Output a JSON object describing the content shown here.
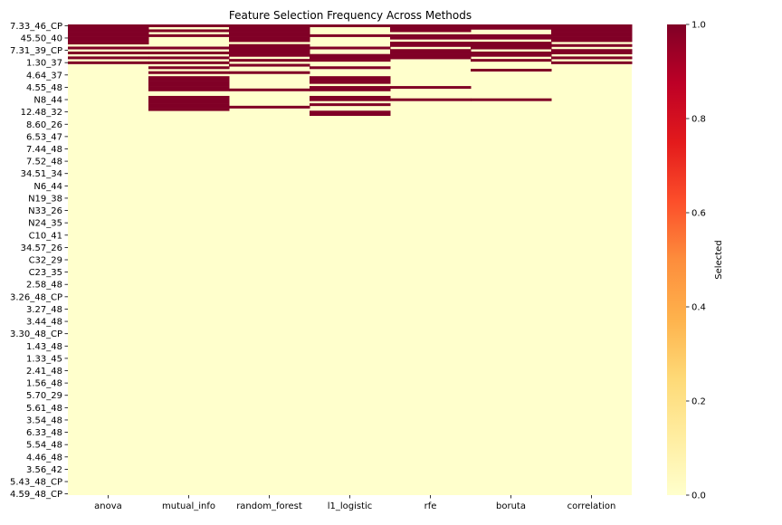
{
  "chart_data": {
    "type": "heatmap",
    "title": "Feature Selection Frequency Across Methods",
    "xlabel": "",
    "ylabel": "",
    "methods": [
      "anova",
      "mutual_info",
      "random_forest",
      "l1_logistic",
      "rfe",
      "boruta",
      "correlation"
    ],
    "n_features": 191,
    "y_tick_labels": [
      "7.33_46_CP",
      "45.50_40",
      "7.31_39_CP",
      "1.30_37",
      "4.64_37",
      "4.55_48",
      "N8_44",
      "12.48_32",
      "8.60_26",
      "6.53_47",
      "7.44_48",
      "7.52_48",
      "34.51_34",
      "N6_44",
      "N19_38",
      "N33_26",
      "N24_35",
      "C10_41",
      "34.57_26",
      "C32_29",
      "C23_35",
      "2.58_48",
      "3.26_48_CP",
      "3.27_48",
      "3.44_48",
      "3.30_48_CP",
      "1.43_48",
      "1.33_45",
      "2.41_48",
      "1.56_48",
      "5.70_29",
      "5.61_48",
      "3.54_48",
      "6.33_48",
      "5.54_48",
      "4.46_48",
      "3.56_42",
      "5.43_48_CP",
      "4.59_48_CP"
    ],
    "y_tick_every": 5,
    "selected_feature_indices": {
      "anova": [
        0,
        1,
        2,
        3,
        4,
        5,
        6,
        7,
        9,
        11,
        13,
        15
      ],
      "mutual_info": [
        0,
        2,
        4,
        9,
        11,
        13,
        15,
        17,
        19,
        21,
        22,
        23,
        24,
        25,
        26,
        29,
        30,
        31,
        32,
        33,
        34
      ],
      "random_forest": [
        0,
        1,
        2,
        3,
        4,
        5,
        6,
        8,
        9,
        10,
        11,
        12,
        14,
        16,
        19,
        26,
        33
      ],
      "l1_logistic": [
        0,
        4,
        9,
        12,
        13,
        14,
        17,
        21,
        22,
        23,
        25,
        26,
        29,
        30,
        32,
        35,
        36
      ],
      "rfe": [
        0,
        1,
        2,
        4,
        5,
        7,
        8,
        10,
        11,
        12,
        13,
        25,
        30
      ],
      "boruta": [
        0,
        1,
        4,
        5,
        7,
        8,
        9,
        11,
        12,
        14,
        18,
        30
      ],
      "correlation": [
        0,
        1,
        2,
        3,
        4,
        5,
        6,
        8,
        10,
        11,
        13,
        15
      ]
    },
    "colorbar": {
      "label": "Selected",
      "range": [
        0,
        1
      ],
      "ticks": [
        "0.0",
        "0.2",
        "0.4",
        "0.6",
        "0.8",
        "1.0"
      ],
      "colormap": "YlOrRd",
      "low_color": "#ffffcc",
      "high_color": "#800026"
    },
    "grid": false
  }
}
